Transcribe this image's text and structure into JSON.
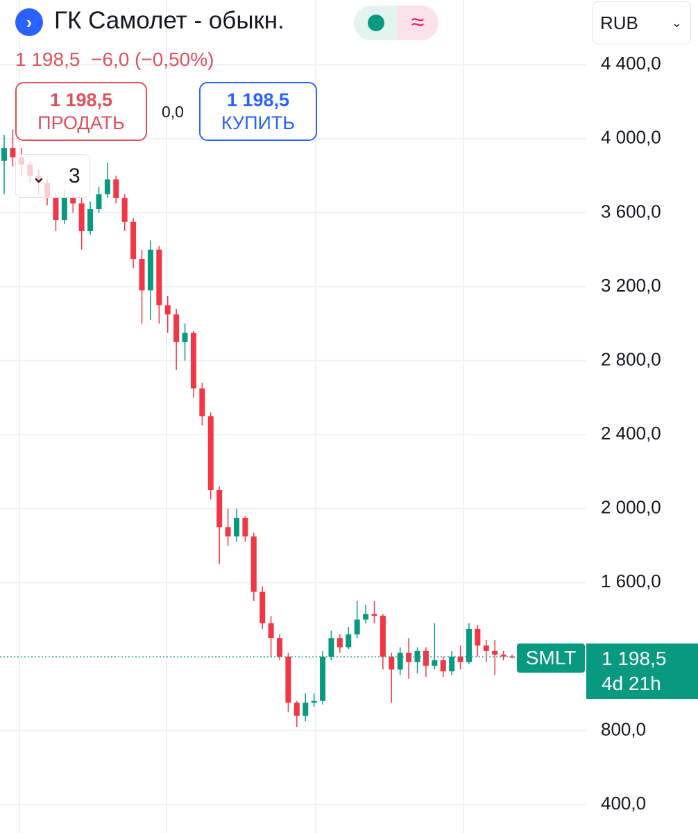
{
  "header": {
    "title": "ГК Самолет - обыкн.",
    "currency": "RUB",
    "price": "1 198,5",
    "change": "−6,0",
    "change_percent": "(−0,50%)"
  },
  "trade": {
    "sell_price": "1 198,5",
    "sell_label": "ПРОДАТЬ",
    "spread": "0,0",
    "buy_price": "1 198,5",
    "buy_label": "КУПИТЬ"
  },
  "indicators": {
    "count": "3"
  },
  "chart_data": {
    "type": "candlestick",
    "up_color": "#089981",
    "down_color": "#f23645",
    "ylim": [
      246,
      4750
    ],
    "yticks": [
      {
        "value": 4400,
        "label": "4 400,0"
      },
      {
        "value": 4000,
        "label": "4 000,0"
      },
      {
        "value": 3600,
        "label": "3 600,0"
      },
      {
        "value": 3200,
        "label": "3 200,0"
      },
      {
        "value": 2800,
        "label": "2 800,0"
      },
      {
        "value": 2400,
        "label": "2 400,0"
      },
      {
        "value": 2000,
        "label": "2 000,0"
      },
      {
        "value": 1600,
        "label": "1 600,0"
      },
      {
        "value": 800,
        "label": "800,0"
      },
      {
        "value": 400,
        "label": "400,0"
      }
    ],
    "grid": true,
    "open": [
      3880,
      3950,
      3900,
      3860,
      3800,
      3760,
      3680,
      3560,
      3680,
      3650,
      3500,
      3620,
      3700,
      3780,
      3680,
      3550,
      3350,
      3180,
      3400,
      3100,
      3050,
      2900,
      2950,
      2650,
      2500,
      2100,
      1900,
      1850,
      1950,
      1850,
      1550,
      1380,
      1300,
      1200,
      950,
      880,
      950,
      960,
      1200,
      1300,
      1250,
      1320,
      1400,
      1430,
      1420,
      1200,
      1130,
      1220,
      1170,
      1230,
      1150,
      1180,
      1120,
      1200,
      1170,
      1350,
      1260,
      1230,
      1210,
      1200
    ],
    "high": [
      4020,
      4050,
      3950,
      3880,
      3830,
      3780,
      3700,
      3720,
      3700,
      3680,
      3660,
      3740,
      3870,
      3800,
      3700,
      3570,
      3400,
      3450,
      3420,
      3150,
      3080,
      3000,
      2960,
      2680,
      2520,
      2120,
      2000,
      2000,
      1960,
      1870,
      1580,
      1420,
      1320,
      1220,
      960,
      1000,
      1000,
      1230,
      1340,
      1320,
      1360,
      1500,
      1480,
      1500,
      1430,
      1220,
      1250,
      1300,
      1250,
      1250,
      1380,
      1200,
      1230,
      1260,
      1380,
      1370,
      1290,
      1290,
      1230,
      1210
    ],
    "low": [
      3700,
      3850,
      3800,
      3760,
      3700,
      3640,
      3500,
      3540,
      3600,
      3400,
      3480,
      3600,
      3680,
      3650,
      3500,
      3300,
      3000,
      3020,
      3000,
      2950,
      2750,
      2800,
      2600,
      2450,
      2050,
      1700,
      1800,
      1820,
      1820,
      1500,
      1350,
      1200,
      1180,
      900,
      820,
      850,
      930,
      940,
      1180,
      1220,
      1240,
      1300,
      1380,
      1380,
      1130,
      950,
      1100,
      1080,
      1110,
      1090,
      1130,
      1090,
      1100,
      1130,
      1160,
      1200,
      1170,
      1100,
      1180,
      1190
    ],
    "close": [
      3950,
      3900,
      3860,
      3800,
      3760,
      3680,
      3560,
      3680,
      3650,
      3500,
      3620,
      3700,
      3780,
      3680,
      3550,
      3350,
      3180,
      3400,
      3100,
      3050,
      2900,
      2950,
      2650,
      2500,
      2100,
      1900,
      1850,
      1950,
      1850,
      1550,
      1380,
      1300,
      1200,
      950,
      880,
      950,
      960,
      1200,
      1300,
      1250,
      1320,
      1400,
      1430,
      1420,
      1200,
      1130,
      1220,
      1170,
      1230,
      1150,
      1180,
      1120,
      1200,
      1170,
      1350,
      1260,
      1230,
      1210,
      1200,
      1198.5
    ],
    "last_price": 1198.5,
    "last_price_label": "1 198,5",
    "symbol": "SMLT",
    "countdown": "4d 21h"
  }
}
